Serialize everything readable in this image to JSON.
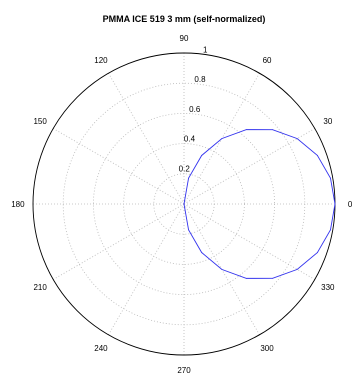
{
  "chart_data": {
    "type": "polar-line",
    "title": "PMMA ICE 519 3 mm (self-normalized)",
    "theta_unit": "degrees",
    "theta_ticks": [
      0,
      30,
      60,
      90,
      120,
      150,
      180,
      210,
      240,
      270,
      300,
      330
    ],
    "theta_tick_labels": [
      "0",
      "30",
      "60",
      "90",
      "120",
      "150",
      "180",
      "210",
      "240",
      "270",
      "300",
      "330"
    ],
    "r_ticks": [
      0.2,
      0.4,
      0.6,
      0.8,
      1
    ],
    "r_tick_labels": [
      "0.2",
      "0.4",
      "0.6",
      "0.8",
      "1"
    ],
    "r_max": 1,
    "r_label_angle_deg": 80,
    "grid": true,
    "series": [
      {
        "pattern": "cardioid-like lobe, r = cos(theta) in the range -90..90 degrees",
        "color": "#3333ee",
        "theta": [
          -90,
          -80,
          -70,
          -60,
          -50,
          -40,
          -30,
          -20,
          -10,
          0,
          10,
          20,
          30,
          40,
          50,
          60,
          70,
          80,
          90
        ],
        "r": [
          0.0,
          0.174,
          0.342,
          0.5,
          0.643,
          0.766,
          0.866,
          0.94,
          0.985,
          1.0,
          0.985,
          0.94,
          0.866,
          0.766,
          0.643,
          0.5,
          0.342,
          0.174,
          0.0
        ]
      }
    ]
  }
}
